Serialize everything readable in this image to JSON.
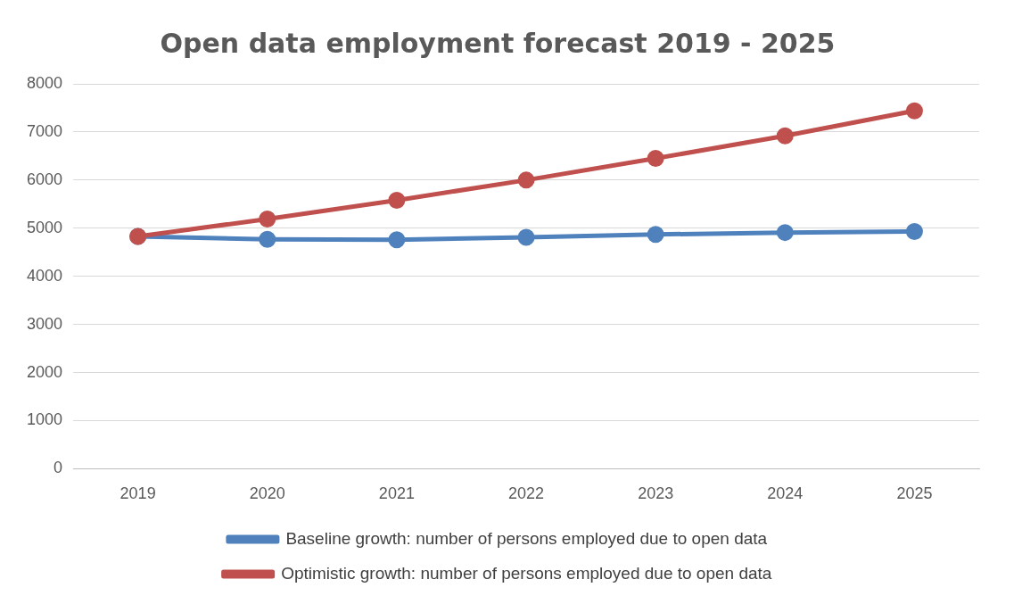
{
  "chart_data": {
    "type": "line",
    "title": "Open data employment forecast 2019 - 2025",
    "categories": [
      "2019",
      "2020",
      "2021",
      "2022",
      "2023",
      "2024",
      "2025"
    ],
    "series": [
      {
        "name": "Baseline growth: number of persons employed due to open data",
        "color": "#4f81bd",
        "values": [
          4830,
          4770,
          4760,
          4810,
          4870,
          4910,
          4930
        ]
      },
      {
        "name": "Optimistic growth: number of persons employed due to open data",
        "color": "#c0504d",
        "values": [
          4830,
          5190,
          5580,
          6000,
          6450,
          6920,
          7440
        ]
      }
    ],
    "ylim": [
      0,
      8000
    ],
    "yticks": [
      0,
      1000,
      2000,
      3000,
      4000,
      5000,
      6000,
      7000,
      8000
    ],
    "grid": "y",
    "legend": "bottom",
    "marker": "circle",
    "line_style": "solid"
  }
}
